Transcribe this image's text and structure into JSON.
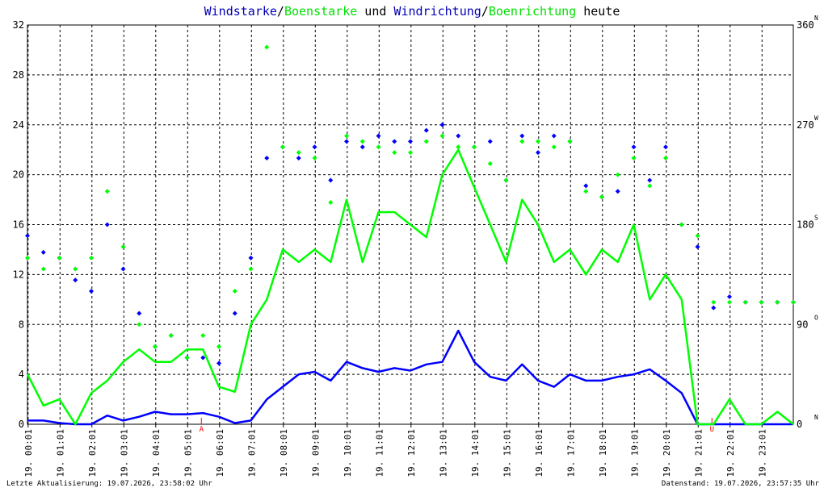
{
  "chart_data": {
    "type": "line",
    "title_parts": [
      {
        "text": "Windstarke",
        "role": "wind"
      },
      {
        "text": "/",
        "role": "plain"
      },
      {
        "text": "Boenstarke",
        "role": "gust"
      },
      {
        "text": " und ",
        "role": "plain"
      },
      {
        "text": "Windrichtung",
        "role": "wind"
      },
      {
        "text": "/",
        "role": "plain"
      },
      {
        "text": "Boenrichtung",
        "role": "gust"
      },
      {
        "text": " heute",
        "role": "plain"
      }
    ],
    "colors": {
      "wind": "#0000ff",
      "gust": "#00ff00",
      "wind_title": "#0000b4",
      "gust_title": "#00e000",
      "plain": "#000000",
      "grid": "#000000",
      "marker": "#ff0000"
    },
    "x_range": [
      0,
      24
    ],
    "x_ticks": [
      {
        "hour": 0.02,
        "label": "19. 00:01"
      },
      {
        "hour": 1.02,
        "label": "19. 01:01"
      },
      {
        "hour": 2.02,
        "label": "19. 02:01"
      },
      {
        "hour": 3.02,
        "label": "19. 03:01"
      },
      {
        "hour": 4.02,
        "label": "19. 04:01"
      },
      {
        "hour": 5.02,
        "label": "19. 05:01"
      },
      {
        "hour": 6.02,
        "label": "19. 06:01"
      },
      {
        "hour": 7.02,
        "label": "19. 07:01"
      },
      {
        "hour": 8.02,
        "label": "19. 08:01"
      },
      {
        "hour": 9.02,
        "label": "19. 09:01"
      },
      {
        "hour": 10.02,
        "label": "19. 10:01"
      },
      {
        "hour": 11.02,
        "label": "19. 11:01"
      },
      {
        "hour": 12.02,
        "label": "19. 12:01"
      },
      {
        "hour": 13.02,
        "label": "19. 13:01"
      },
      {
        "hour": 14.02,
        "label": "19. 14:01"
      },
      {
        "hour": 15.02,
        "label": "19. 15:01"
      },
      {
        "hour": 16.02,
        "label": "19. 16:01"
      },
      {
        "hour": 17.02,
        "label": "19. 17:01"
      },
      {
        "hour": 18.02,
        "label": "19. 18:01"
      },
      {
        "hour": 19.02,
        "label": "19. 19:01"
      },
      {
        "hour": 20.02,
        "label": "19. 20:01"
      },
      {
        "hour": 21.02,
        "label": "19. 21:01"
      },
      {
        "hour": 22.02,
        "label": "19. 22:01"
      },
      {
        "hour": 23.02,
        "label": "19. 23:01"
      }
    ],
    "y_left": {
      "range": [
        0,
        32
      ],
      "ticks": [
        "0",
        "4",
        "8",
        "12",
        "16",
        "20",
        "24",
        "28",
        "32"
      ]
    },
    "y_right": {
      "range": [
        0,
        360
      ],
      "ticks": [
        {
          "value": 0,
          "label": "0"
        },
        {
          "value": 90,
          "label": "90"
        },
        {
          "value": 180,
          "label": "180"
        },
        {
          "value": 270,
          "label": "270"
        },
        {
          "value": 360,
          "label": "360"
        }
      ],
      "compass": [
        {
          "value": 0,
          "label": "N"
        },
        {
          "value": 90,
          "label": "O"
        },
        {
          "value": 180,
          "label": "S"
        },
        {
          "value": 270,
          "label": "W"
        },
        {
          "value": 360,
          "label": "N"
        }
      ]
    },
    "sun_markers": [
      {
        "hour": 5.45,
        "label": "A"
      },
      {
        "hour": 21.45,
        "label": "U"
      }
    ],
    "series": [
      {
        "name": "Windstarke",
        "role": "wind",
        "kind": "line",
        "x": [
          0,
          0.5,
          1,
          1.5,
          2,
          2.5,
          3,
          3.5,
          4,
          4.5,
          5,
          5.5,
          6,
          6.5,
          7,
          7.5,
          8,
          8.5,
          9,
          9.5,
          10,
          10.5,
          11,
          11.5,
          12,
          12.5,
          13,
          13.5,
          14,
          14.5,
          15,
          15.5,
          16,
          16.5,
          17,
          17.5,
          18,
          18.5,
          19,
          19.5,
          20,
          20.5,
          21,
          21.5,
          22,
          22.5,
          23,
          23.5,
          24
        ],
        "values": [
          0.3,
          0.3,
          0.1,
          0,
          0,
          0.7,
          0.3,
          0.6,
          1,
          0.8,
          0.8,
          0.9,
          0.6,
          0.1,
          0.3,
          2,
          3,
          4,
          4.2,
          3.5,
          5,
          4.5,
          4.2,
          4.5,
          4.3,
          4.8,
          5,
          7.5,
          5,
          3.8,
          3.5,
          4.8,
          3.5,
          3,
          4,
          3.5,
          3.5,
          3.8,
          4,
          4.4,
          3.5,
          2.5,
          0,
          0,
          0,
          0,
          0,
          0,
          0
        ]
      },
      {
        "name": "Boenstarke",
        "role": "gust",
        "kind": "line",
        "x": [
          0,
          0.5,
          1,
          1.5,
          2,
          2.5,
          3,
          3.5,
          4,
          4.5,
          5,
          5.5,
          6,
          6.5,
          7,
          7.5,
          8,
          8.5,
          9,
          9.5,
          10,
          10.5,
          11,
          11.5,
          12,
          12.5,
          13,
          13.5,
          14,
          14.5,
          15,
          15.5,
          16,
          16.5,
          17,
          17.5,
          18,
          18.5,
          19,
          19.5,
          20,
          20.5,
          21,
          21.5,
          22,
          22.5,
          23,
          23.5,
          24
        ],
        "values": [
          4,
          1.5,
          2,
          0,
          2.5,
          3.5,
          5,
          6,
          5,
          5,
          6,
          6,
          3,
          2.6,
          8,
          10,
          14,
          13,
          14,
          13,
          18,
          13,
          17,
          17,
          16,
          15,
          20,
          22,
          19,
          16,
          13,
          18,
          16,
          13,
          14,
          12,
          14,
          13,
          16,
          10,
          12,
          10,
          0,
          0,
          2,
          0,
          0,
          1,
          0
        ]
      },
      {
        "name": "Windrichtung",
        "role": "wind",
        "kind": "scatter",
        "x": [
          0,
          0.5,
          1,
          1.5,
          2,
          2.5,
          3,
          3.5,
          4,
          4.5,
          5,
          5.5,
          6,
          6.5,
          7,
          7.5,
          8,
          8.5,
          9,
          9.5,
          10,
          10.5,
          11,
          11.5,
          12,
          12.5,
          13,
          13.5,
          14,
          14.5,
          15,
          15.5,
          16,
          16.5,
          17,
          17.5,
          18,
          18.5,
          19,
          19.5,
          20,
          20.5,
          21,
          21.5,
          22,
          22.5,
          23,
          23.5,
          24
        ],
        "values": [
          170,
          155,
          150,
          130,
          120,
          180,
          140,
          100,
          70,
          80,
          60,
          60,
          55,
          100,
          150,
          240,
          250,
          240,
          250,
          220,
          255,
          250,
          260,
          255,
          255,
          265,
          270,
          260,
          250,
          255,
          220,
          260,
          245,
          260,
          255,
          215,
          205,
          210,
          250,
          220,
          250,
          180,
          160,
          105,
          115,
          110,
          110,
          110,
          110
        ]
      },
      {
        "name": "Boenrichtung",
        "role": "gust",
        "kind": "scatter",
        "x": [
          0,
          0.5,
          1,
          1.5,
          2,
          2.5,
          3,
          3.5,
          4,
          4.5,
          5,
          5.5,
          6,
          6.5,
          7,
          7.5,
          8,
          8.5,
          9,
          9.5,
          10,
          10.5,
          11,
          11.5,
          12,
          12.5,
          13,
          13.5,
          14,
          14.5,
          15,
          15.5,
          16,
          16.5,
          17,
          17.5,
          18,
          18.5,
          19,
          19.5,
          20,
          20.5,
          21,
          21.5,
          22,
          22.5,
          23,
          23.5,
          24
        ],
        "values": [
          150,
          140,
          150,
          140,
          150,
          210,
          160,
          90,
          70,
          80,
          60,
          80,
          70,
          120,
          140,
          340,
          250,
          245,
          240,
          200,
          260,
          255,
          250,
          245,
          245,
          255,
          260,
          250,
          250,
          235,
          220,
          255,
          255,
          250,
          255,
          210,
          205,
          225,
          240,
          215,
          240,
          180,
          170,
          110,
          110,
          110,
          110,
          110,
          110
        ]
      }
    ]
  },
  "footer": {
    "left": "Letzte Aktualisierung: 19.07.2026, 23:58:02 Uhr",
    "right": "Datenstand: 19.07.2026, 23:57:35 Uhr"
  }
}
